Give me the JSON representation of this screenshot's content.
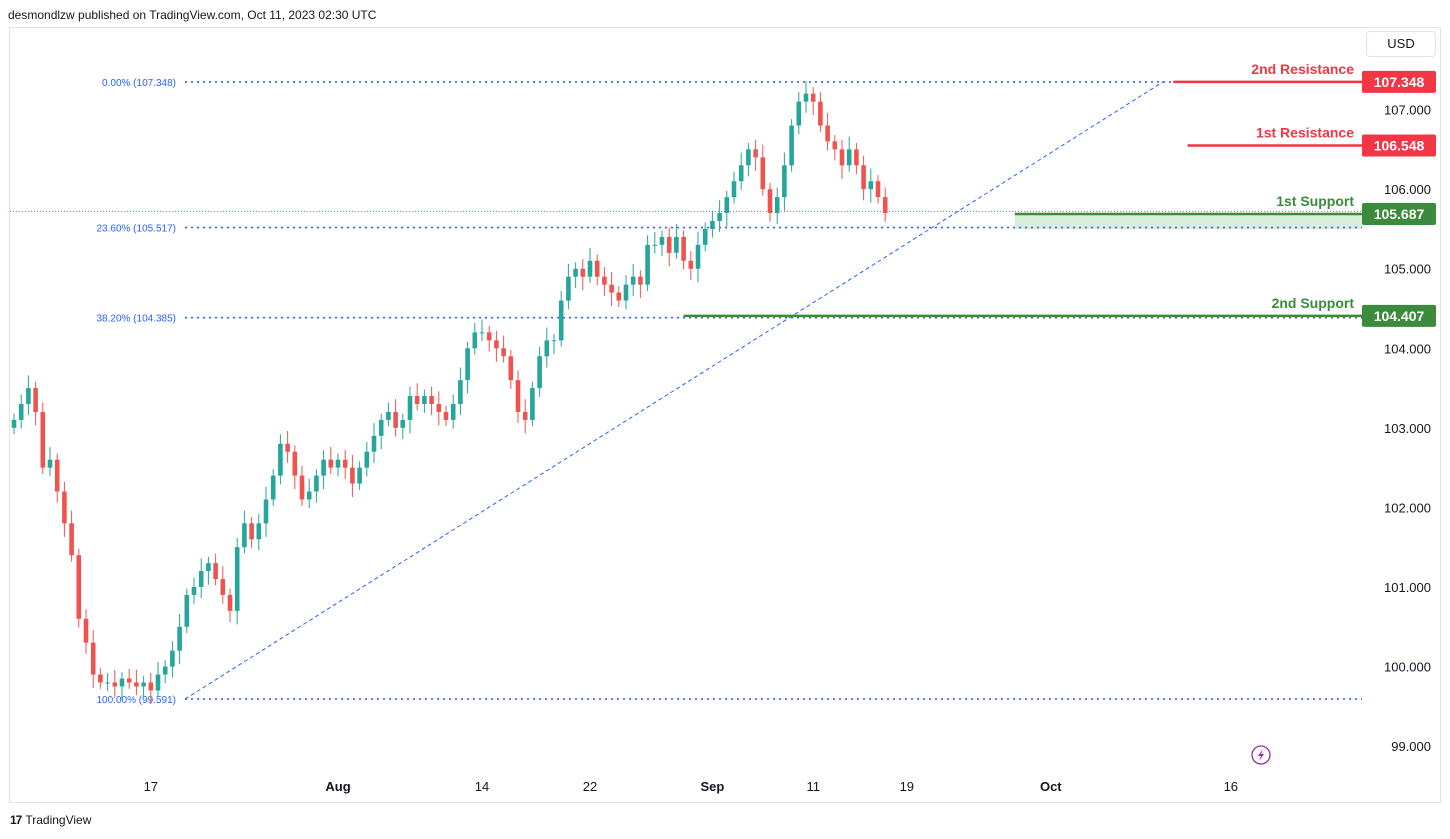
{
  "header": {
    "published_text": "desmondlzw published on TradingView.com, Oct 11, 2023 02:30 UTC"
  },
  "currency": "USD",
  "footer": {
    "brand": "TradingView",
    "logo_glyph": "17"
  },
  "colors": {
    "up": "#26a69a",
    "down": "#ef5350",
    "resistance": "#f23645",
    "support": "#3c8a3c",
    "fib": "#2962ff",
    "zone": "#c9e8c9"
  },
  "chart_data": {
    "type": "candlestick",
    "title": "",
    "ylim": [
      98.7,
      107.95
    ],
    "y_ticks": [
      "107.000",
      "106.000",
      "105.000",
      "104.000",
      "103.000",
      "102.000",
      "101.000",
      "100.000",
      "99.000"
    ],
    "x_ticks": [
      {
        "label": "17",
        "bold": false,
        "idx": 19
      },
      {
        "label": "Aug",
        "bold": true,
        "idx": 45
      },
      {
        "label": "14",
        "bold": false,
        "idx": 65
      },
      {
        "label": "22",
        "bold": false,
        "idx": 80
      },
      {
        "label": "Sep",
        "bold": true,
        "idx": 97
      },
      {
        "label": "11",
        "bold": false,
        "idx": 111
      },
      {
        "label": "19",
        "bold": false,
        "idx": 124
      },
      {
        "label": "Oct",
        "bold": true,
        "idx": 144
      },
      {
        "label": "16",
        "bold": false,
        "idx": 169
      }
    ],
    "closes": [
      103.1,
      103.3,
      103.5,
      103.2,
      102.5,
      102.6,
      102.2,
      101.8,
      101.4,
      100.6,
      100.3,
      99.9,
      99.8,
      99.8,
      99.75,
      99.85,
      99.8,
      99.75,
      99.8,
      99.7,
      99.9,
      100.0,
      100.2,
      100.5,
      100.9,
      101.0,
      101.2,
      101.3,
      101.1,
      100.9,
      100.7,
      101.5,
      101.8,
      101.6,
      101.8,
      102.1,
      102.4,
      102.8,
      102.7,
      102.4,
      102.1,
      102.2,
      102.4,
      102.6,
      102.5,
      102.6,
      102.5,
      102.3,
      102.5,
      102.7,
      102.9,
      103.1,
      103.2,
      103.0,
      103.1,
      103.4,
      103.3,
      103.4,
      103.3,
      103.2,
      103.1,
      103.3,
      103.6,
      104.0,
      104.2,
      104.2,
      104.1,
      104.0,
      103.9,
      103.6,
      103.2,
      103.1,
      103.5,
      103.9,
      104.1,
      104.1,
      104.6,
      104.9,
      105.0,
      104.9,
      105.1,
      104.9,
      104.8,
      104.7,
      104.6,
      104.8,
      104.9,
      104.8,
      105.3,
      105.3,
      105.4,
      105.2,
      105.4,
      105.1,
      105.0,
      105.3,
      105.5,
      105.6,
      105.7,
      105.9,
      106.1,
      106.3,
      106.5,
      106.4,
      106.0,
      105.7,
      105.9,
      106.3,
      106.8,
      107.1,
      107.2,
      107.1,
      106.8,
      106.6,
      106.5,
      106.3,
      106.5,
      106.3,
      106.0,
      106.1,
      105.9,
      105.7
    ],
    "fib_levels": [
      {
        "label": "0.00% (107.348)",
        "value": 107.348
      },
      {
        "label": "23.60% (105.517)",
        "value": 105.517
      },
      {
        "label": "38.20% (104.385)",
        "value": 104.385
      },
      {
        "label": "100.00% (99.591)",
        "value": 99.591
      }
    ],
    "levels": [
      {
        "name": "2nd Resistance",
        "value": 107.348,
        "price_label": "107.348",
        "kind": "resistance"
      },
      {
        "name": "1st Resistance",
        "value": 106.548,
        "price_label": "106.548",
        "kind": "resistance"
      },
      {
        "name": "1st Support",
        "value": 105.687,
        "price_label": "105.687",
        "kind": "support"
      },
      {
        "name": "2nd Support",
        "value": 104.407,
        "price_label": "104.407",
        "kind": "support"
      }
    ],
    "current_price": 105.72,
    "support_zone": [
      105.5,
      105.687
    ]
  }
}
